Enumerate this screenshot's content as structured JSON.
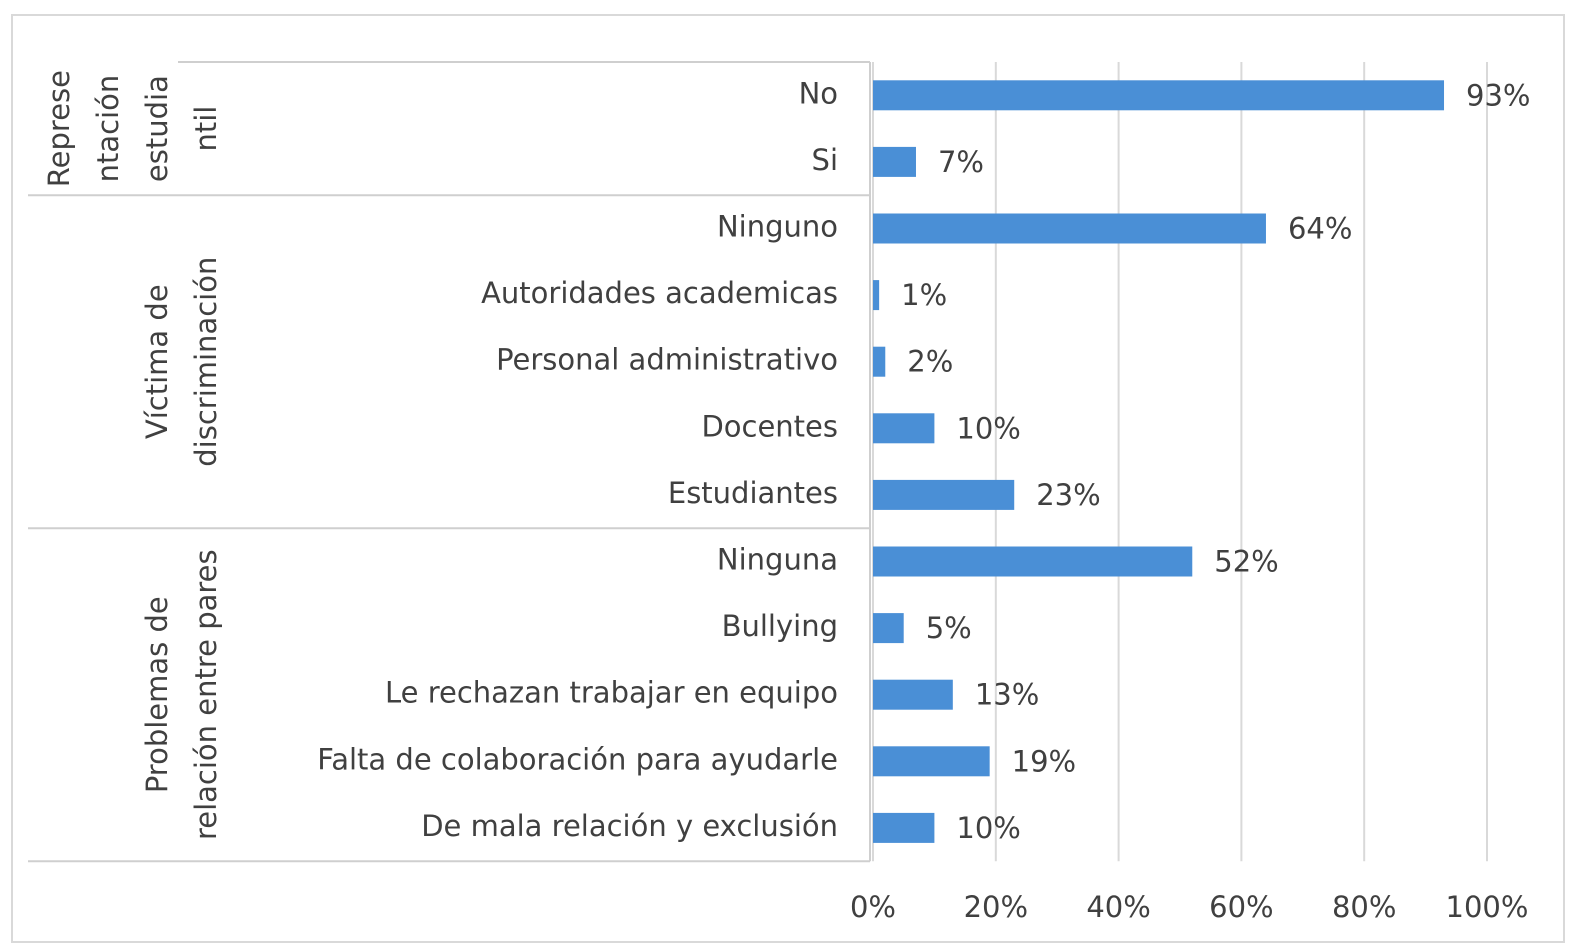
{
  "chart_data": {
    "type": "bar",
    "orientation": "horizontal",
    "color": "#4a8fd6",
    "xlim": [
      0,
      100
    ],
    "xticks": [
      {
        "value": 0,
        "label": "0%"
      },
      {
        "value": 20,
        "label": "20%"
      },
      {
        "value": 40,
        "label": "40%"
      },
      {
        "value": 60,
        "label": "60%"
      },
      {
        "value": 80,
        "label": "80%"
      },
      {
        "value": 100,
        "label": "100%"
      }
    ],
    "grid": true,
    "groups": [
      {
        "label": [
          "Represe",
          "ntación",
          "estudia",
          "ntil"
        ],
        "categories": [
          "No",
          "Si"
        ],
        "values": [
          93,
          7
        ],
        "value_labels": [
          "93%",
          "7%"
        ]
      },
      {
        "label": [
          "Víctima de",
          "discriminación"
        ],
        "categories": [
          "Ninguno",
          "Autoridades academicas",
          "Personal administrativo",
          "Docentes",
          "Estudiantes"
        ],
        "values": [
          64,
          1,
          2,
          10,
          23
        ],
        "value_labels": [
          "64%",
          "1%",
          "2%",
          "10%",
          "23%"
        ]
      },
      {
        "label": [
          "Problemas de",
          "relación entre pares"
        ],
        "categories": [
          "Ninguna",
          "Bullying",
          "Le rechazan trabajar en equipo",
          "Falta de colaboración para ayudarle",
          "De mala relación y exclusión"
        ],
        "values": [
          52,
          5,
          13,
          19,
          10
        ],
        "value_labels": [
          "52%",
          "5%",
          "13%",
          "19%",
          "10%"
        ]
      }
    ]
  }
}
